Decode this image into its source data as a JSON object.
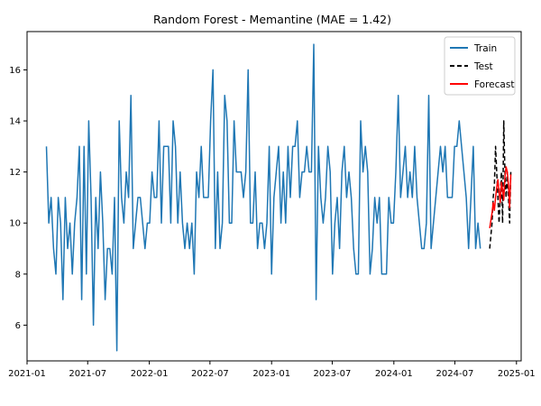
{
  "chart_data": {
    "type": "line",
    "title": "Random Forest - Memantine (MAE = 1.42)",
    "xlabel": "",
    "ylabel": "",
    "x_axis": {
      "type": "date",
      "range": [
        "2021-01-01",
        "2025-01-15"
      ],
      "ticks": [
        "2021-01",
        "2021-07",
        "2022-01",
        "2022-07",
        "2023-01",
        "2023-07",
        "2024-01",
        "2024-07",
        "2025-01"
      ]
    },
    "y_axis": {
      "range": [
        4.6,
        17.5
      ],
      "ticks": [
        "6",
        "8",
        "10",
        "12",
        "14",
        "16"
      ]
    },
    "grid": false,
    "legend_position": "top-right",
    "legend": [
      "Train",
      "Test",
      "Forecast"
    ],
    "colors": {
      "Train": "#1f77b4",
      "Test": "#000000",
      "Forecast": "#ff0000"
    },
    "series": [
      {
        "name": "Train",
        "style": "solid",
        "start_date": "2021-02-28",
        "step_days": 7,
        "values": [
          13,
          10,
          11,
          9,
          8,
          11,
          10,
          7,
          11,
          9,
          10,
          8,
          10,
          11,
          13,
          7,
          13,
          8,
          14,
          11,
          6,
          11,
          9,
          12,
          10,
          7,
          9,
          9,
          8,
          11,
          5,
          14,
          11,
          10,
          12,
          11,
          15,
          9,
          10,
          11,
          11,
          10,
          9,
          10,
          10,
          12,
          11,
          11,
          14,
          10,
          13,
          13,
          13,
          10,
          14,
          13,
          10,
          12,
          10,
          9,
          10,
          9,
          10,
          8,
          12,
          11,
          13,
          11,
          11,
          11,
          14,
          16,
          9,
          12,
          9,
          10,
          15,
          14,
          10,
          10,
          14,
          12,
          12,
          12,
          11,
          12,
          16,
          10,
          10,
          12,
          9,
          10,
          10,
          9,
          10,
          13,
          8,
          11,
          12,
          13,
          10,
          12,
          10,
          13,
          11,
          13,
          13,
          14,
          11,
          12,
          12,
          13,
          12,
          12,
          17,
          7,
          13,
          11,
          10,
          11,
          13,
          12,
          8,
          10,
          11,
          9,
          12,
          13,
          11,
          12,
          11,
          9,
          8,
          8,
          14,
          12,
          13,
          12,
          8,
          9,
          11,
          10,
          11,
          8,
          8,
          8,
          11,
          10,
          10,
          12,
          15,
          11,
          12,
          13,
          11,
          12,
          11,
          13,
          11,
          10,
          9,
          9,
          10,
          15,
          9,
          10,
          11,
          12,
          13,
          12,
          13,
          11,
          11,
          11,
          13,
          13,
          14,
          13,
          12,
          11,
          9,
          11,
          13,
          9,
          10,
          9
        ]
      },
      {
        "name": "Test",
        "style": "dashed",
        "start_date": "2024-10-13",
        "step_days": 3.5,
        "values": [
          9,
          9.5,
          10,
          11,
          11.5,
          13,
          12,
          11,
          10,
          11,
          12,
          10,
          14,
          12,
          11,
          12,
          11,
          10,
          12
        ]
      },
      {
        "name": "Forecast",
        "style": "solid",
        "start_date": "2024-10-13",
        "step_days": 3.5,
        "values": [
          9.8,
          10.1,
          10.4,
          10.8,
          10.5,
          11,
          11.4,
          11.7,
          11.2,
          10.8,
          11.6,
          11.3,
          10.9,
          11.8,
          12.2,
          12,
          11.5,
          10.6,
          11.9
        ]
      }
    ]
  }
}
